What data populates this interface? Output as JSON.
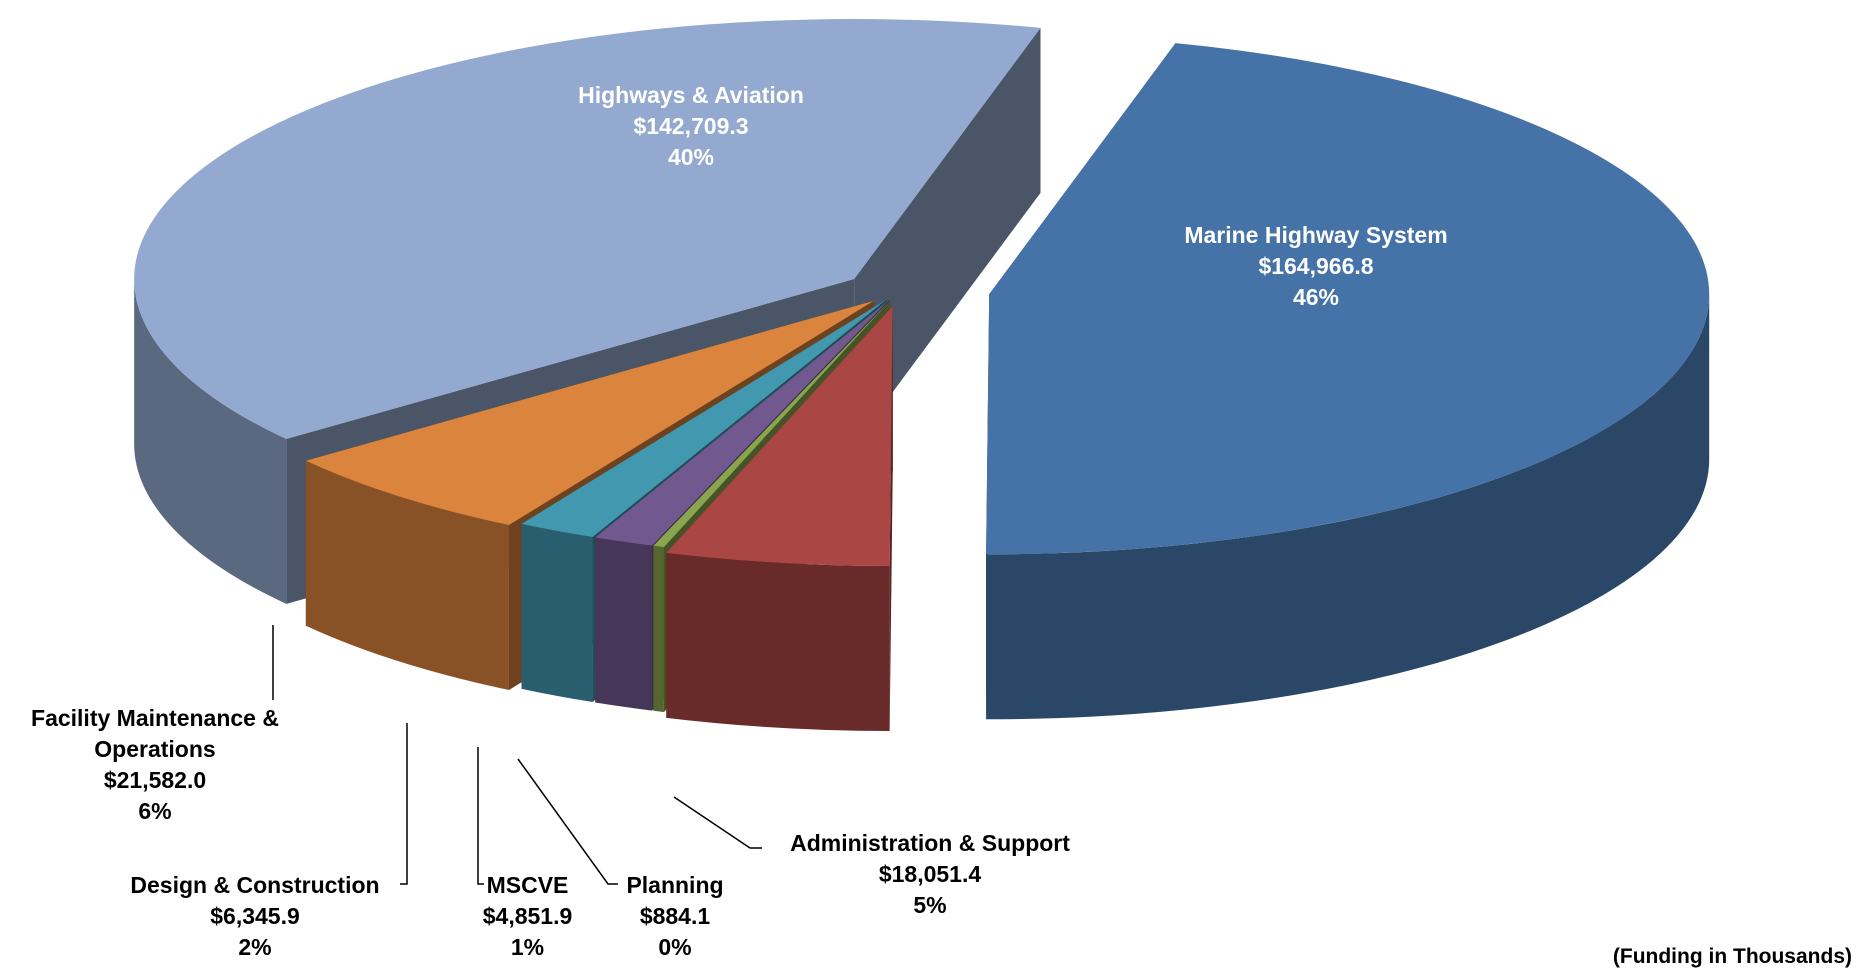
{
  "chart_data": {
    "type": "pie",
    "categories": [
      "Marine Highway System",
      "Administration & Support",
      "Planning",
      "MSCVE",
      "Design & Construction",
      "Facility Maintenance & Operations",
      "Highways & Aviation"
    ],
    "values": [
      164966.8,
      18051.4,
      884.1,
      4851.9,
      6345.9,
      21582.0,
      142709.3
    ],
    "value_labels": [
      "$164,966.8",
      "$18,051.4",
      "$884.1",
      "$4,851.9",
      "$6,345.9",
      "$21,582.0",
      "$142,709.3"
    ],
    "percents": [
      46,
      5,
      0,
      1,
      2,
      6,
      40
    ],
    "percent_labels": [
      "46%",
      "5%",
      "0%",
      "1%",
      "2%",
      "6%",
      "40%"
    ],
    "colors": [
      "#4572a7",
      "#aa4643",
      "#89a54e",
      "#71588f",
      "#4198af",
      "#db843d",
      "#93a9cf"
    ],
    "note": "(Funding in Thousands)"
  }
}
